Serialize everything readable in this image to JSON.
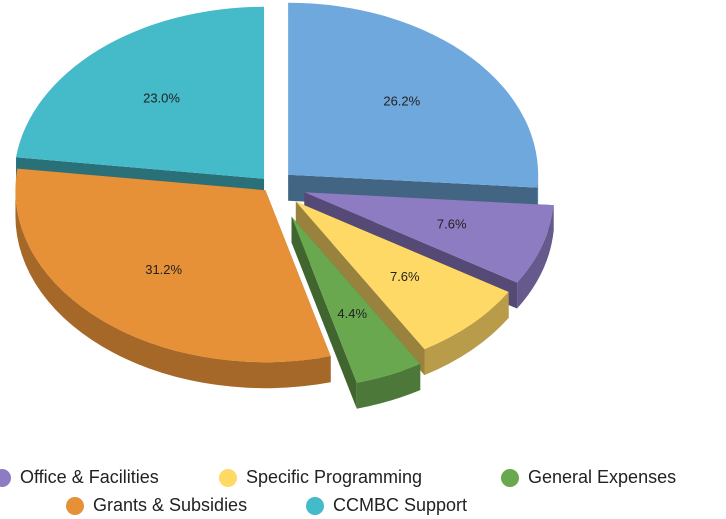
{
  "chart_data": {
    "type": "pie3d",
    "categories": [
      null,
      "Office & Facilities",
      "Specific Programming",
      "General Expenses",
      "Grants & Subsidies",
      "CCMBC Support"
    ],
    "values": [
      26.2,
      7.6,
      7.6,
      4.4,
      31.2,
      23.0
    ],
    "value_labels": [
      "26.2%",
      "7.6%",
      "7.6%",
      "4.4%",
      "31.2%",
      "23.0%"
    ],
    "colors": [
      "#6fa8dc",
      "#8e7cc3",
      "#ffd966",
      "#6aa84f",
      "#e69138",
      "#45bac8"
    ]
  }
}
